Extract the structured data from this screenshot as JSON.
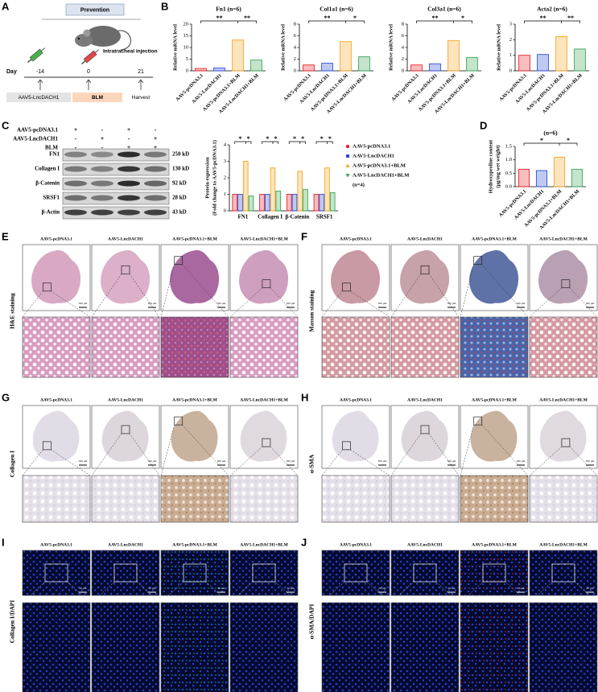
{
  "panel_labels": [
    "A",
    "B",
    "C",
    "D",
    "E",
    "F",
    "G",
    "H",
    "I",
    "J"
  ],
  "schematic": {
    "prevention": "Prevention",
    "injection": "Intratracheal injection",
    "day_label": "Day",
    "days": [
      "-14",
      "0",
      "21"
    ],
    "treatments": [
      "AAV5-LncDACH1",
      "BLM"
    ],
    "harvest": "Harvest"
  },
  "western_blot": {
    "conditions": [
      {
        "label": "AAV5-pcDNA3.1",
        "signs": [
          "+",
          "-",
          "+",
          "-"
        ]
      },
      {
        "label": "AAV5-LncDACH1",
        "signs": [
          "-",
          "+",
          "-",
          "+"
        ]
      },
      {
        "label": "BLM",
        "signs": [
          "-",
          "-",
          "+",
          "+"
        ]
      }
    ],
    "proteins": [
      {
        "name": "FN1",
        "size": "250 kD"
      },
      {
        "name": "Collagen I",
        "size": "130 kD"
      },
      {
        "name": "β-Catenin",
        "size": "92 kD"
      },
      {
        "name": "SRSF1",
        "size": "28 kD"
      },
      {
        "name": "β-Actin",
        "size": "43 kD"
      }
    ]
  },
  "chart_data": [
    {
      "type": "bar",
      "title": "Fn1 (n=6)",
      "ylabel": [
        "Relative mRNA level"
      ],
      "categories": [
        "AAV5-pcDNA3.1",
        "AAV5-LncDACH1",
        "AAV5-pcDNA3.1+BLM",
        "AAV5-LncDACH1+BLM"
      ],
      "values": [
        1.0,
        1.2,
        13.2,
        4.6
      ],
      "colors": [
        "#e8232a",
        "#2b4fd8",
        "#f5a623",
        "#3aa655"
      ],
      "ylim": [
        0,
        20
      ],
      "yticks": [
        0,
        5,
        10,
        15,
        20
      ],
      "significance": [
        "**",
        "**"
      ]
    },
    {
      "type": "bar",
      "title": "Col1a1 (n=6)",
      "ylabel": [
        "Relative mRNA level"
      ],
      "categories": [
        "AAV5-pcDNA3.1",
        "AAV5-LncDACH1",
        "AAV5-pcDNA3.1+BLM",
        "AAV5-LncDACH1+BLM"
      ],
      "values": [
        1.0,
        1.3,
        5.0,
        2.4
      ],
      "colors": [
        "#e8232a",
        "#2b4fd8",
        "#f5a623",
        "#3aa655"
      ],
      "ylim": [
        0,
        8
      ],
      "yticks": [
        0,
        2,
        4,
        6,
        8
      ],
      "significance": [
        "**",
        "*"
      ]
    },
    {
      "type": "bar",
      "title": "Col3a1 (n=6)",
      "ylabel": [
        "Relative mRNA level"
      ],
      "categories": [
        "AAV5-pcDNA3.1",
        "AAV5-LncDACH1",
        "AAV5-pcDNA3.1+BLM",
        "AAV5-LncDACH1+BLM"
      ],
      "values": [
        1.0,
        1.2,
        5.2,
        2.3
      ],
      "colors": [
        "#e8232a",
        "#2b4fd8",
        "#f5a623",
        "#3aa655"
      ],
      "ylim": [
        0,
        8
      ],
      "yticks": [
        0,
        2,
        4,
        6,
        8
      ],
      "significance": [
        "**",
        "*"
      ]
    },
    {
      "type": "bar",
      "title": "Acta2 (n=6)",
      "ylabel": [
        "Relative mRNA level"
      ],
      "categories": [
        "AAV5-pcDNA3.1",
        "AAV5-LncDACH1",
        "AAV5-pcDNA3.1+BLM",
        "AAV5-LncDACH1+BLM"
      ],
      "values": [
        1.0,
        1.05,
        2.2,
        1.4
      ],
      "colors": [
        "#e8232a",
        "#2b4fd8",
        "#f5a623",
        "#3aa655"
      ],
      "ylim": [
        0,
        3
      ],
      "yticks": [
        0,
        1,
        2,
        3
      ],
      "significance": [
        "**",
        "**"
      ]
    },
    {
      "type": "bar",
      "ylabel": [
        "Protein expression",
        "(Fold change to AAV5-pcDNA3.1)"
      ],
      "categories": [
        "FN1",
        "Collagen I",
        "β-Catenin",
        "SRSF1"
      ],
      "series": [
        {
          "name": "AAV5-pcDNA3.1",
          "color": "#e8232a",
          "values": [
            1.0,
            1.0,
            1.0,
            1.0
          ]
        },
        {
          "name": "AAV5-LncDACH1",
          "color": "#2b4fd8",
          "values": [
            1.0,
            1.0,
            1.0,
            1.0
          ]
        },
        {
          "name": "AAV5-pcDNA3.1+BLM",
          "color": "#f5a623",
          "values": [
            3.0,
            2.6,
            2.4,
            2.6
          ]
        },
        {
          "name": "AAV5-LncDACH1+BLM",
          "color": "#3aa655",
          "values": [
            0.9,
            1.2,
            1.3,
            1.1
          ]
        }
      ],
      "ylim": [
        0,
        4
      ],
      "yticks": [
        0,
        1,
        2,
        3,
        4
      ],
      "significance": [
        [
          "*",
          "*"
        ],
        [
          "*",
          "*"
        ],
        [
          "*",
          "*"
        ],
        [
          "*",
          "*"
        ]
      ],
      "annotation": "(n=4)"
    },
    {
      "type": "bar",
      "title": "(n=6)",
      "ylabel": [
        "Hydroxyproline content",
        "(μg/mg wet weight)"
      ],
      "categories": [
        "AAV5-pcDNA3.1",
        "AAV5-LncDACH1",
        "AAV5-pcDNA3.1+BLM",
        "AAV5-LncDACH1+BLM"
      ],
      "values": [
        0.65,
        0.6,
        1.1,
        0.65
      ],
      "colors": [
        "#e8232a",
        "#2b4fd8",
        "#f5a623",
        "#3aa655"
      ],
      "ylim": [
        0,
        1.5
      ],
      "yticks": [
        {
          "value": 0,
          "label": "0.0"
        },
        {
          "value": 0.5,
          "label": "0.5"
        },
        {
          "value": 1,
          "label": "1.0"
        },
        {
          "value": 1.5,
          "label": "1.5"
        }
      ],
      "significance": [
        "*",
        "*"
      ]
    }
  ],
  "microscopy": [
    {
      "row_label": "H&E staining",
      "groups": [
        "AAV5-pcDNA3.1",
        "AAV5-LncDACH1",
        "AAV5-pcDNA3.1+BLM",
        "AAV5-LncDACH1+BLM"
      ],
      "scale_bar": "500 μm"
    },
    {
      "row_label": "Masson staining",
      "groups": [
        "AAV5-pcDNA3.1",
        "AAV5-LncDACH1",
        "AAV5-pcDNA3.1+BLM",
        "AAV5-LncDACH1+BLM"
      ],
      "scale_bar": "500 μm"
    },
    {
      "row_label": "Collagen I",
      "groups": [
        "AAV5-pcDNA3.1",
        "AAV5-LncDACH1",
        "AAV5-pcDNA3.1+BLM",
        "AAV5-LncDACH1+BLM"
      ],
      "scale_bar": "500 μm"
    },
    {
      "row_label": "α-SMA",
      "groups": [
        "AAV5-pcDNA3.1",
        "AAV5-LncDACH1",
        "AAV5-pcDNA3.1+BLM",
        "AAV5-LncDACH1+BLM"
      ],
      "scale_bar": "500 μm"
    },
    {
      "row_label": "Collagen I/DAPI",
      "groups": [
        "AAV5-pcDNA3.1",
        "AAV5-LncDACH1",
        "AAV5-pcDNA3.1+BLM",
        "AAV5-LncDACH1+BLM"
      ],
      "scale_bar": "50 μm"
    },
    {
      "row_label": "α-SMA/DAPI",
      "groups": [
        "AAV5-pcDNA3.1",
        "AAV5-LncDACH1",
        "AAV5-pcDNA3.1+BLM",
        "AAV5-LncDACH1+BLM"
      ],
      "scale_bar": "50 μm"
    }
  ]
}
